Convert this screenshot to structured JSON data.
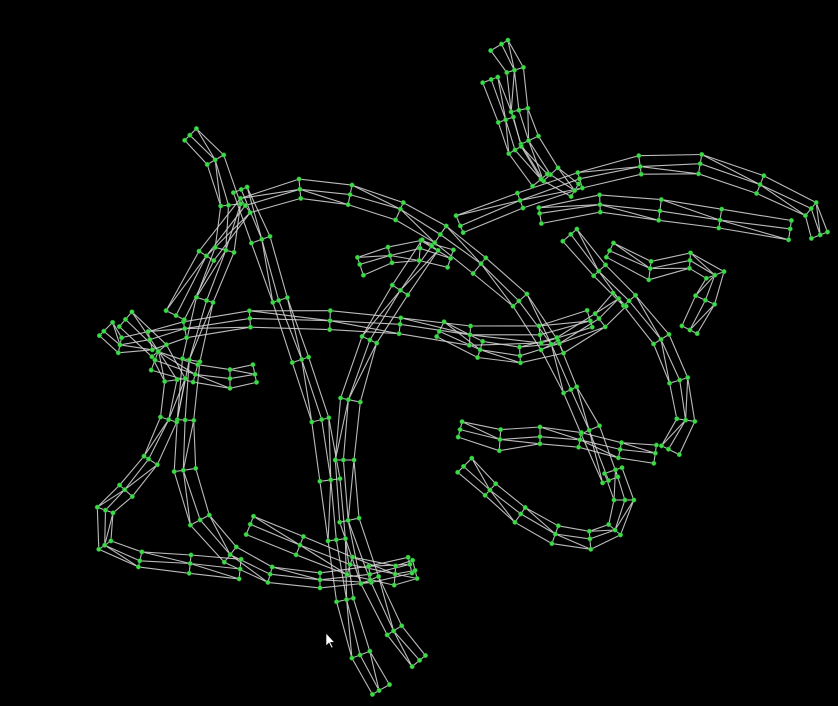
{
  "scene": {
    "background_color": "#000000",
    "edge_color": "#cfcfcf",
    "vertex_color": "#3fd94a",
    "render_mode": "wireframe",
    "cursor_icon": "arrow-cursor-icon"
  }
}
